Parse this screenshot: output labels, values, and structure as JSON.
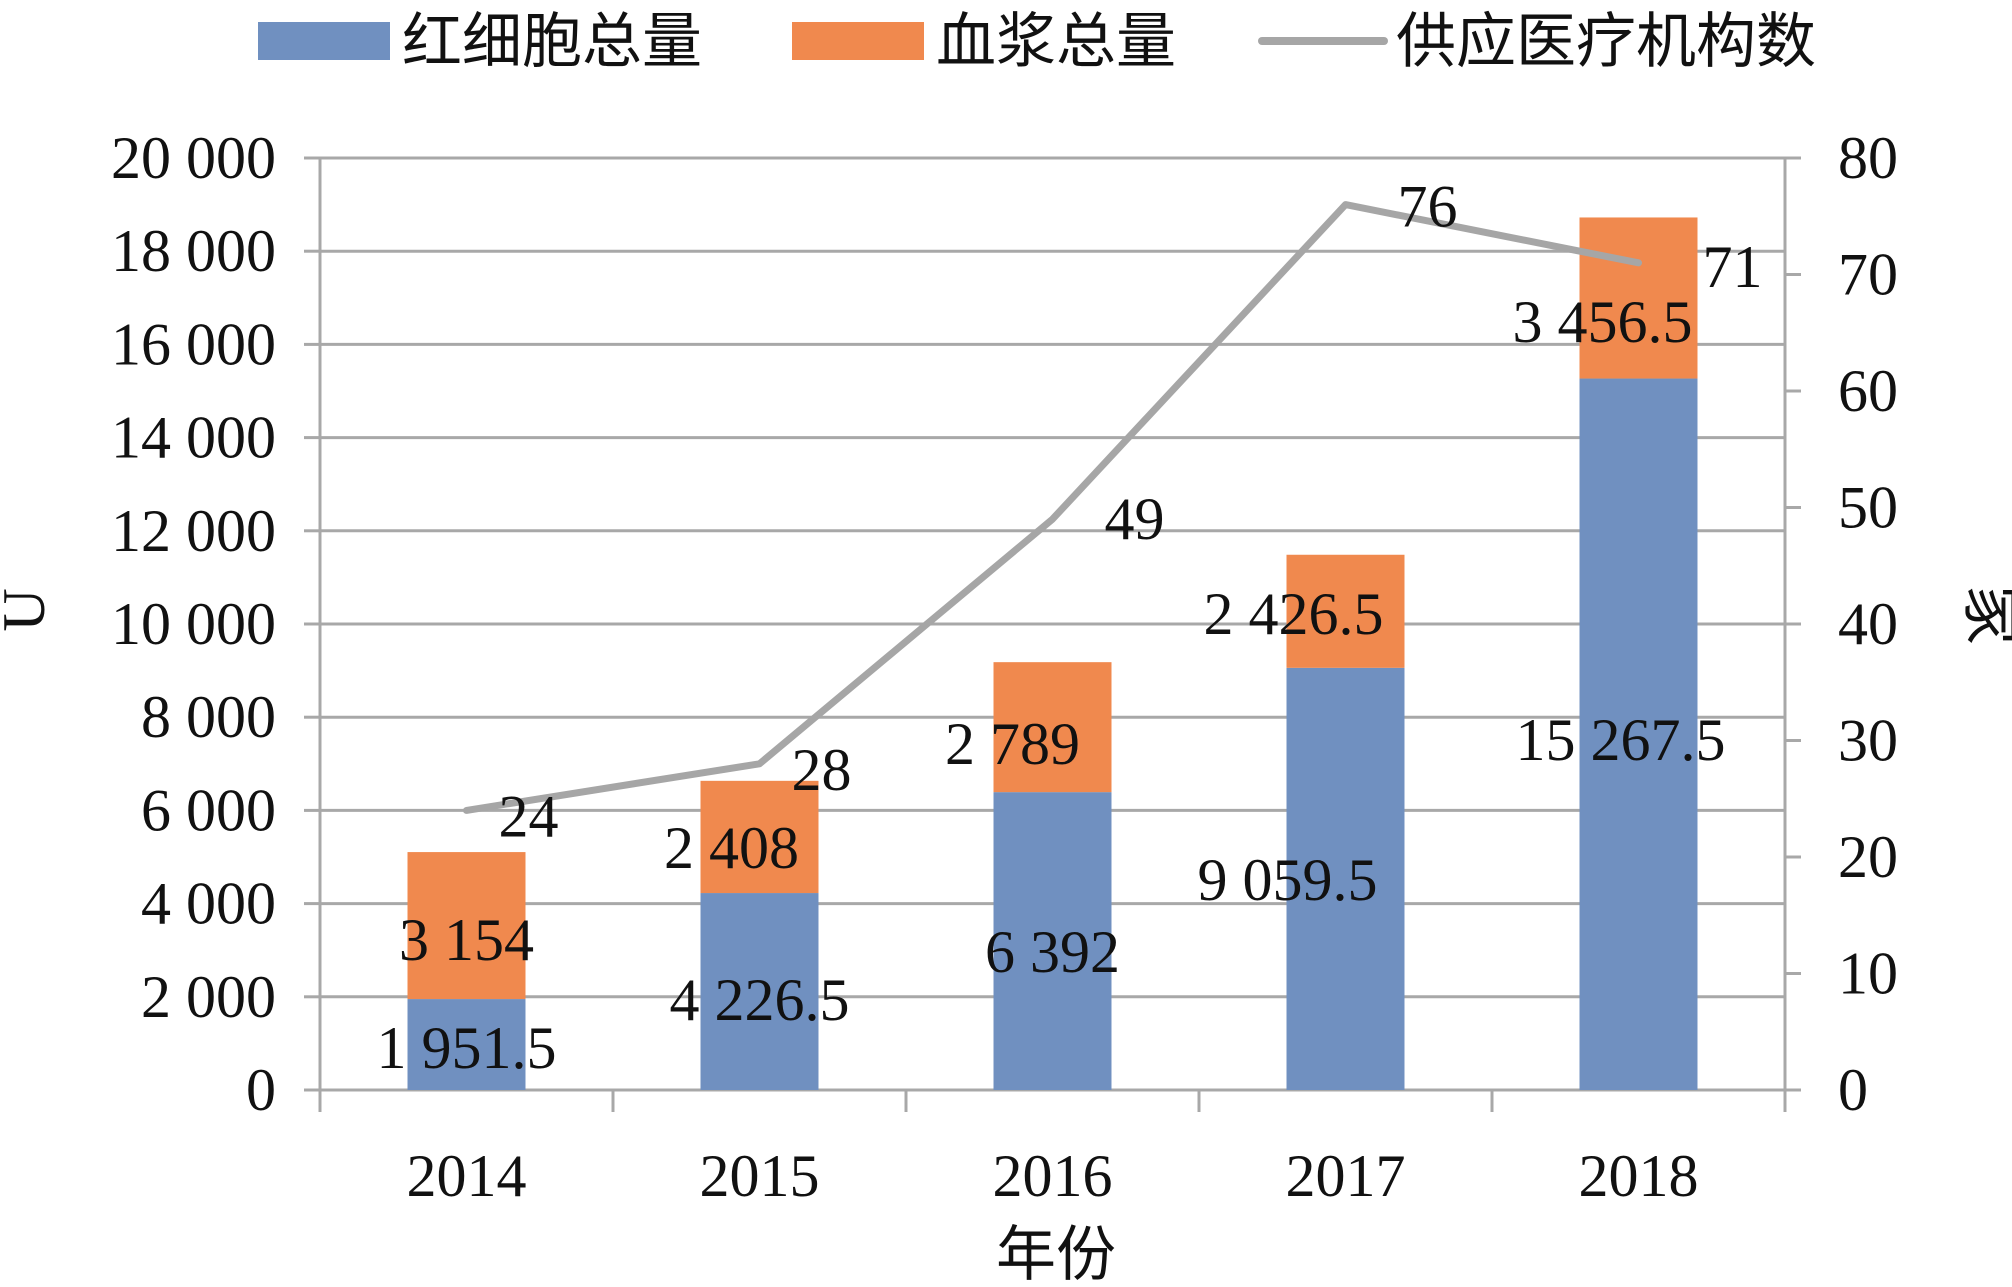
{
  "chart_data": {
    "type": "bar",
    "stacked": true,
    "categories": [
      "2014",
      "2015",
      "2016",
      "2017",
      "2018"
    ],
    "series": [
      {
        "name": "红细胞总量",
        "type": "bar",
        "axis": "left",
        "color": "#7090c0",
        "values": [
          1951.5,
          4226.5,
          6392,
          9059.5,
          15267.5
        ],
        "labels": [
          "1 951.5",
          "4 226.5",
          "6 392",
          "9 059.5",
          "15 267.5"
        ]
      },
      {
        "name": "血浆总量",
        "type": "bar",
        "axis": "left",
        "color": "#f0894e",
        "values": [
          3154,
          2408,
          2789,
          2426.5,
          3456.5
        ],
        "labels": [
          "3 154",
          "2 408",
          "2 789",
          "2 426.5",
          "3 456.5"
        ]
      },
      {
        "name": "供应医疗机构数",
        "type": "line",
        "axis": "right",
        "color": "#a6a6a6",
        "values": [
          24,
          28,
          49,
          76,
          71
        ],
        "labels": [
          "24",
          "28",
          "49",
          "76",
          "71"
        ]
      }
    ],
    "xlabel": "年份",
    "ylabel": "U",
    "y2label": "家",
    "ylim": [
      0,
      20000
    ],
    "y2lim": [
      0,
      80
    ],
    "yticks": [
      "0",
      "2 000",
      "4 000",
      "6 000",
      "8 000",
      "10 000",
      "12 000",
      "14 000",
      "16 000",
      "18 000",
      "20 000"
    ],
    "y2ticks": [
      "0",
      "10",
      "20",
      "30",
      "40",
      "50",
      "60",
      "70",
      "80"
    ],
    "grid": true,
    "legend": "top"
  }
}
